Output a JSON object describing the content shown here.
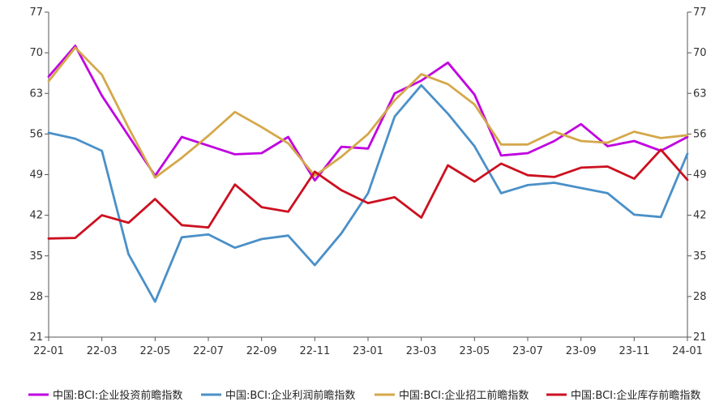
{
  "chart_data": {
    "type": "line",
    "categories": [
      "22-01",
      "22-02",
      "22-03",
      "22-04",
      "22-05",
      "22-06",
      "22-07",
      "22-08",
      "22-09",
      "22-10",
      "22-11",
      "22-12",
      "23-01",
      "23-02",
      "23-03",
      "23-04",
      "23-05",
      "23-06",
      "23-07",
      "23-08",
      "23-09",
      "23-10",
      "23-11",
      "23-12",
      "24-01"
    ],
    "x_tick_labels": [
      "22-01",
      "22-03",
      "22-05",
      "22-07",
      "22-09",
      "22-11",
      "23-01",
      "23-03",
      "23-05",
      "23-07",
      "23-09",
      "23-11",
      "24-01"
    ],
    "y_ticks": [
      21,
      28,
      35,
      42,
      49,
      56,
      63,
      70,
      77
    ],
    "ylim": [
      21,
      77
    ],
    "grid": false,
    "legend_position": "bottom",
    "series": [
      {
        "name": "中国:BCI:企业投资前瞻指数",
        "color": "#c000e0",
        "values": [
          65.9,
          71.2,
          62.6,
          55.7,
          48.8,
          55.5,
          54.0,
          52.5,
          52.7,
          55.5,
          48.0,
          53.8,
          53.5,
          63.0,
          65.2,
          68.3,
          62.8,
          52.3,
          52.7,
          54.8,
          57.7,
          53.9,
          54.8,
          53.1,
          55.5
        ]
      },
      {
        "name": "中国:BCI:企业利润前瞻指数",
        "color": "#4a90c8",
        "values": [
          56.2,
          55.2,
          53.1,
          35.3,
          27.1,
          38.2,
          38.7,
          36.4,
          37.9,
          38.5,
          33.4,
          38.9,
          45.8,
          59.0,
          64.4,
          59.5,
          53.9,
          45.8,
          47.2,
          47.6,
          46.7,
          45.8,
          42.1,
          41.7,
          52.6
        ]
      },
      {
        "name": "中国:BCI:企业招工前瞻指数",
        "color": "#d4a84b",
        "values": [
          65.1,
          70.9,
          66.2,
          57.1,
          48.5,
          51.9,
          55.7,
          59.8,
          57.2,
          54.4,
          48.8,
          52.1,
          56.0,
          61.8,
          66.3,
          64.6,
          61.1,
          54.2,
          54.2,
          56.4,
          54.8,
          54.5,
          56.4,
          55.3,
          55.8
        ]
      },
      {
        "name": "中国:BCI:企业库存前瞻指数",
        "color": "#cc1020",
        "values": [
          38.0,
          38.1,
          42.0,
          40.7,
          44.8,
          40.3,
          39.9,
          47.3,
          43.4,
          42.6,
          49.5,
          46.3,
          44.1,
          45.1,
          41.6,
          50.6,
          47.8,
          50.9,
          48.9,
          48.6,
          50.2,
          50.4,
          48.3,
          53.3,
          48.1
        ]
      }
    ]
  }
}
